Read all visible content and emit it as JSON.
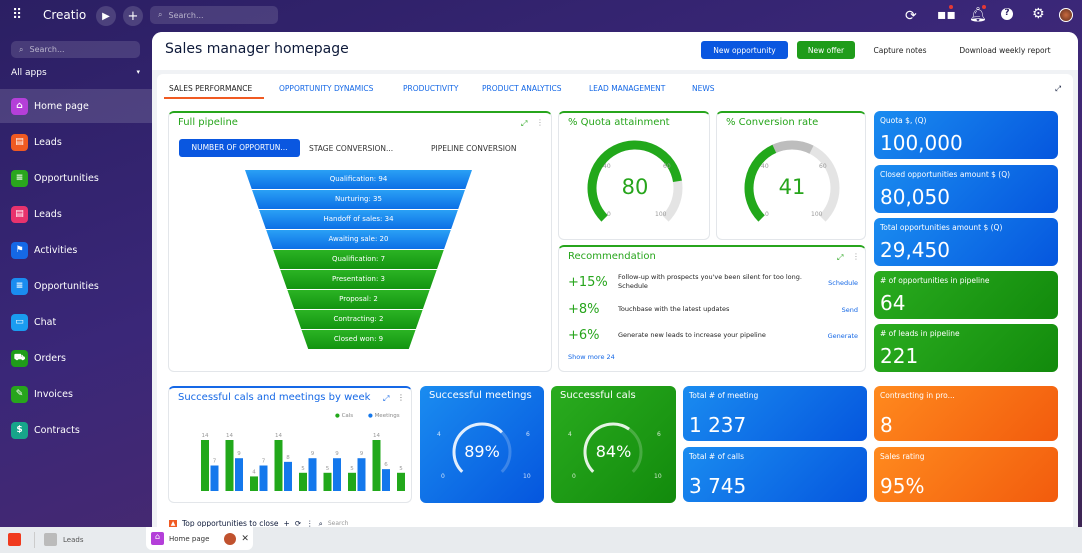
{
  "topbar": {
    "brand": "Creatio",
    "search_placeholder": "Search..."
  },
  "sidebar": {
    "search_placeholder": "Search...",
    "all_apps": "All apps",
    "items": [
      {
        "label": "Home page",
        "color": "#b43fd9",
        "glyph": "⌂"
      },
      {
        "label": "Leads",
        "color": "#f05a22",
        "glyph": "▤"
      },
      {
        "label": "Opportunities",
        "color": "#2aa61e",
        "glyph": "≡"
      },
      {
        "label": "Leads",
        "color": "#e8336d",
        "glyph": "▤"
      },
      {
        "label": "Activities",
        "color": "#1568e6",
        "glyph": "⚑"
      },
      {
        "label": "Opportunities",
        "color": "#1a8cf0",
        "glyph": "≡"
      },
      {
        "label": "Chat",
        "color": "#1a9cf0",
        "glyph": "▭"
      },
      {
        "label": "Orders",
        "color": "#1f9c1a",
        "glyph": "⛟"
      },
      {
        "label": "Invoices",
        "color": "#27a51c",
        "glyph": "✎"
      },
      {
        "label": "Contracts",
        "color": "#17a58a",
        "glyph": "$"
      }
    ]
  },
  "header": {
    "title": "Sales manager homepage",
    "new_opportunity": "New opportunity",
    "new_offer": "New offer",
    "capture_notes": "Capture notes",
    "download_report": "Download weekly report"
  },
  "tabs": [
    "SALES PERFORMANCE",
    "OPPORTUNITY DYNAMICS",
    "PRODUCTIVITY",
    "PRODUCT ANALYTICS",
    "LEAD MANAGEMENT",
    "NEWS"
  ],
  "pipeline": {
    "title": "Full pipeline",
    "subtabs": [
      "NUMBER OF OPPORTUN...",
      "STAGE CONVERSION...",
      "PIPELINE CONVERSION"
    ],
    "stages": [
      {
        "label": "Qualification: 94",
        "color": "blue"
      },
      {
        "label": "Nurturing: 35",
        "color": "blue"
      },
      {
        "label": "Handoff of sales: 34",
        "color": "blue"
      },
      {
        "label": "Awaiting sale: 20",
        "color": "blue"
      },
      {
        "label": "Qualification: 7",
        "color": "green"
      },
      {
        "label": "Presentation: 3",
        "color": "green"
      },
      {
        "label": "Proposal: 2",
        "color": "green"
      },
      {
        "label": "Contracting: 2",
        "color": "green"
      },
      {
        "label": "Closed won: 9",
        "color": "green"
      }
    ]
  },
  "quota": {
    "title": "% Quota attainment",
    "value": 80,
    "display": "80",
    "ticks": [
      "0",
      "40",
      "60",
      "100"
    ]
  },
  "conversion": {
    "title": "% Conversion rate",
    "value": 41,
    "display": "41",
    "ticks": [
      "0",
      "40",
      "60",
      "100"
    ]
  },
  "recommendation": {
    "title": "Recommendation",
    "items": [
      {
        "pct": "+15%",
        "text": "Follow-up with prospects you've been silent for too long. Schedule",
        "action": "Schedule"
      },
      {
        "pct": "+8%",
        "text": "Touchbase with the latest updates",
        "action": "Send"
      },
      {
        "pct": "+6%",
        "text": "Generate new leads to increase your pipeline",
        "action": "Generate"
      }
    ],
    "show_more": "Show more 24"
  },
  "kpis": [
    {
      "label": "Quota $, (Q)",
      "value": "100,000",
      "color": "blue"
    },
    {
      "label": "Closed opportunities amount $ (Q)",
      "value": "80,050",
      "color": "blue"
    },
    {
      "label": "Total opportunities amount $ (Q)",
      "value": "29,450",
      "color": "blue"
    },
    {
      "label": "# of opportunities in pipeline",
      "value": "64",
      "color": "green"
    },
    {
      "label": "# of leads in pipeline",
      "value": "221",
      "color": "green"
    }
  ],
  "chart_data": {
    "type": "bar",
    "title": "Successful cals and meetings by week",
    "legend_position": "top-right",
    "series": [
      {
        "name": "Cals",
        "color": "#22a81b",
        "values": [
          14,
          14,
          4,
          14,
          5,
          5,
          5,
          14,
          5
        ]
      },
      {
        "name": "Meetings",
        "color": "#1478ec",
        "values": [
          7,
          9,
          7,
          8,
          9,
          9,
          9,
          6,
          null
        ]
      }
    ],
    "ylim": [
      0,
      14
    ],
    "data_labels": true
  },
  "meetings": {
    "title": "Successful meetings",
    "display": "89%",
    "value": 89,
    "ticks": [
      "0",
      "4",
      "6",
      "10"
    ]
  },
  "calls": {
    "title": "Successful cals",
    "display": "84%",
    "value": 84,
    "ticks": [
      "0",
      "4",
      "6",
      "10"
    ]
  },
  "mid_tiles": [
    {
      "label": "Total # of meeting",
      "value": "1 237"
    },
    {
      "label": "Total # of calls",
      "value": "3 745"
    }
  ],
  "right_tiles": [
    {
      "label": "Contracting in pro...",
      "value": "8"
    },
    {
      "label": "Sales rating",
      "value": "95%"
    }
  ],
  "peek": {
    "title": "Top opportunities to close",
    "search": "Search"
  },
  "taskbar": {
    "leads": "Leads",
    "home": "Home page"
  }
}
